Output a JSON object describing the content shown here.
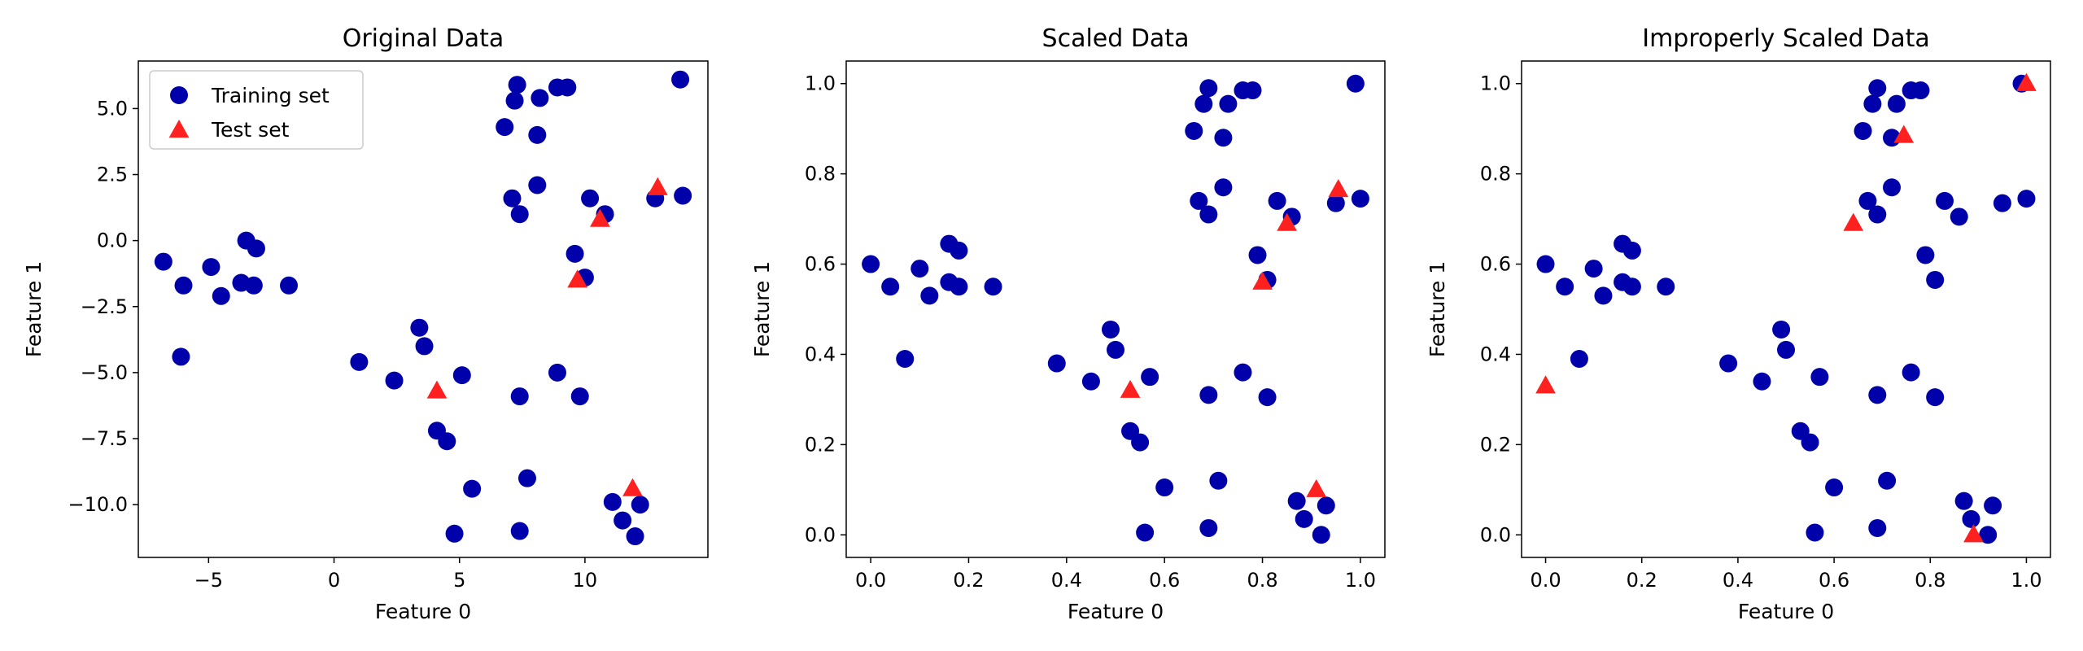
{
  "chart_data": [
    {
      "type": "scatter",
      "title": "Original Data",
      "xlabel": "Feature 0",
      "ylabel": "Feature 1",
      "xlim": [
        -7.8,
        14.9
      ],
      "ylim": [
        -12.0,
        6.8
      ],
      "xticks": [
        -5,
        0,
        5,
        10
      ],
      "xtick_labels": [
        "−5",
        "0",
        "5",
        "10"
      ],
      "yticks": [
        -10.0,
        -7.5,
        -5.0,
        -2.5,
        0.0,
        2.5,
        5.0
      ],
      "ytick_labels": [
        "−10.0",
        "−7.5",
        "−5.0",
        "−2.5",
        "0.0",
        "2.5",
        "5.0"
      ],
      "legend": {
        "position": "upper-left",
        "entries": [
          {
            "label": "Training set",
            "marker": "circle",
            "color": "#0000aa"
          },
          {
            "label": "Test set",
            "marker": "triangle",
            "color": "#ff2020"
          }
        ]
      },
      "series": [
        {
          "name": "Training set",
          "marker": "circle",
          "color": "#0000aa",
          "points": [
            [
              -6.8,
              -0.8
            ],
            [
              -6.0,
              -1.7
            ],
            [
              -6.1,
              -4.4
            ],
            [
              -4.9,
              -1.0
            ],
            [
              -4.5,
              -2.1
            ],
            [
              -3.5,
              0.0
            ],
            [
              -3.1,
              -0.3
            ],
            [
              -3.7,
              -1.6
            ],
            [
              -3.2,
              -1.7
            ],
            [
              -1.8,
              -1.7
            ],
            [
              1.0,
              -4.6
            ],
            [
              2.4,
              -5.3
            ],
            [
              3.4,
              -3.3
            ],
            [
              3.6,
              -4.0
            ],
            [
              5.1,
              -5.1
            ],
            [
              4.1,
              -7.2
            ],
            [
              4.5,
              -7.6
            ],
            [
              5.5,
              -9.4
            ],
            [
              4.8,
              -11.1
            ],
            [
              7.4,
              -5.9
            ],
            [
              7.7,
              -9.0
            ],
            [
              7.4,
              -11.0
            ],
            [
              8.9,
              -5.0
            ],
            [
              9.8,
              -5.9
            ],
            [
              11.1,
              -9.9
            ],
            [
              11.5,
              -10.6
            ],
            [
              12.2,
              -10.0
            ],
            [
              12.0,
              -11.2
            ],
            [
              7.3,
              5.9
            ],
            [
              7.2,
              5.3
            ],
            [
              8.9,
              5.8
            ],
            [
              9.3,
              5.8
            ],
            [
              8.2,
              5.4
            ],
            [
              6.8,
              4.3
            ],
            [
              8.1,
              4.0
            ],
            [
              7.1,
              1.6
            ],
            [
              7.4,
              1.0
            ],
            [
              8.1,
              2.1
            ],
            [
              10.2,
              1.6
            ],
            [
              10.8,
              1.0
            ],
            [
              9.6,
              -0.5
            ],
            [
              10.0,
              -1.4
            ],
            [
              12.8,
              1.6
            ],
            [
              13.8,
              6.1
            ],
            [
              13.9,
              1.7
            ]
          ]
        },
        {
          "name": "Test set",
          "marker": "triangle",
          "color": "#ff2020",
          "points": [
            [
              4.1,
              -5.7
            ],
            [
              9.7,
              -1.5
            ],
            [
              10.6,
              0.8
            ],
            [
              12.9,
              2.0
            ],
            [
              11.9,
              -9.4
            ]
          ]
        }
      ]
    },
    {
      "type": "scatter",
      "title": "Scaled Data",
      "xlabel": "Feature 0",
      "ylabel": "Feature 1",
      "xlim": [
        -0.05,
        1.05
      ],
      "ylim": [
        -0.05,
        1.05
      ],
      "xticks": [
        0.0,
        0.2,
        0.4,
        0.6,
        0.8,
        1.0
      ],
      "xtick_labels": [
        "0.0",
        "0.2",
        "0.4",
        "0.6",
        "0.8",
        "1.0"
      ],
      "yticks": [
        0.0,
        0.2,
        0.4,
        0.6,
        0.8,
        1.0
      ],
      "ytick_labels": [
        "0.0",
        "0.2",
        "0.4",
        "0.6",
        "0.8",
        "1.0"
      ],
      "series": [
        {
          "name": "Training set",
          "marker": "circle",
          "color": "#0000aa",
          "points": [
            [
              0.0,
              0.6
            ],
            [
              0.04,
              0.55
            ],
            [
              0.07,
              0.39
            ],
            [
              0.1,
              0.59
            ],
            [
              0.12,
              0.53
            ],
            [
              0.16,
              0.56
            ],
            [
              0.16,
              0.645
            ],
            [
              0.18,
              0.63
            ],
            [
              0.18,
              0.55
            ],
            [
              0.25,
              0.55
            ],
            [
              0.38,
              0.38
            ],
            [
              0.45,
              0.34
            ],
            [
              0.49,
              0.455
            ],
            [
              0.5,
              0.41
            ],
            [
              0.57,
              0.35
            ],
            [
              0.53,
              0.23
            ],
            [
              0.55,
              0.205
            ],
            [
              0.6,
              0.105
            ],
            [
              0.56,
              0.005
            ],
            [
              0.69,
              0.31
            ],
            [
              0.71,
              0.12
            ],
            [
              0.69,
              0.015
            ],
            [
              0.76,
              0.36
            ],
            [
              0.81,
              0.305
            ],
            [
              0.87,
              0.075
            ],
            [
              0.885,
              0.035
            ],
            [
              0.93,
              0.065
            ],
            [
              0.92,
              0.0
            ],
            [
              0.69,
              0.99
            ],
            [
              0.68,
              0.955
            ],
            [
              0.76,
              0.985
            ],
            [
              0.78,
              0.985
            ],
            [
              0.73,
              0.955
            ],
            [
              0.66,
              0.895
            ],
            [
              0.72,
              0.88
            ],
            [
              0.67,
              0.74
            ],
            [
              0.69,
              0.71
            ],
            [
              0.72,
              0.77
            ],
            [
              0.83,
              0.74
            ],
            [
              0.86,
              0.705
            ],
            [
              0.79,
              0.62
            ],
            [
              0.81,
              0.565
            ],
            [
              0.95,
              0.735
            ],
            [
              0.99,
              1.0
            ],
            [
              1.0,
              0.745
            ]
          ]
        },
        {
          "name": "Test set",
          "marker": "triangle",
          "color": "#ff2020",
          "points": [
            [
              0.53,
              0.32
            ],
            [
              0.8,
              0.56
            ],
            [
              0.85,
              0.69
            ],
            [
              0.955,
              0.765
            ],
            [
              0.91,
              0.1
            ]
          ]
        }
      ]
    },
    {
      "type": "scatter",
      "title": "Improperly Scaled Data",
      "xlabel": "Feature 0",
      "ylabel": "Feature 1",
      "xlim": [
        -0.05,
        1.05
      ],
      "ylim": [
        -0.05,
        1.05
      ],
      "xticks": [
        0.0,
        0.2,
        0.4,
        0.6,
        0.8,
        1.0
      ],
      "xtick_labels": [
        "0.0",
        "0.2",
        "0.4",
        "0.6",
        "0.8",
        "1.0"
      ],
      "yticks": [
        0.0,
        0.2,
        0.4,
        0.6,
        0.8,
        1.0
      ],
      "ytick_labels": [
        "0.0",
        "0.2",
        "0.4",
        "0.6",
        "0.8",
        "1.0"
      ],
      "series": [
        {
          "name": "Training set",
          "marker": "circle",
          "color": "#0000aa",
          "points": [
            [
              0.0,
              0.6
            ],
            [
              0.04,
              0.55
            ],
            [
              0.07,
              0.39
            ],
            [
              0.1,
              0.59
            ],
            [
              0.12,
              0.53
            ],
            [
              0.16,
              0.56
            ],
            [
              0.16,
              0.645
            ],
            [
              0.18,
              0.63
            ],
            [
              0.18,
              0.55
            ],
            [
              0.25,
              0.55
            ],
            [
              0.38,
              0.38
            ],
            [
              0.45,
              0.34
            ],
            [
              0.49,
              0.455
            ],
            [
              0.5,
              0.41
            ],
            [
              0.57,
              0.35
            ],
            [
              0.53,
              0.23
            ],
            [
              0.55,
              0.205
            ],
            [
              0.6,
              0.105
            ],
            [
              0.56,
              0.005
            ],
            [
              0.69,
              0.31
            ],
            [
              0.71,
              0.12
            ],
            [
              0.69,
              0.015
            ],
            [
              0.76,
              0.36
            ],
            [
              0.81,
              0.305
            ],
            [
              0.87,
              0.075
            ],
            [
              0.885,
              0.035
            ],
            [
              0.93,
              0.065
            ],
            [
              0.92,
              0.0
            ],
            [
              0.69,
              0.99
            ],
            [
              0.68,
              0.955
            ],
            [
              0.76,
              0.985
            ],
            [
              0.78,
              0.985
            ],
            [
              0.73,
              0.955
            ],
            [
              0.66,
              0.895
            ],
            [
              0.72,
              0.88
            ],
            [
              0.67,
              0.74
            ],
            [
              0.69,
              0.71
            ],
            [
              0.72,
              0.77
            ],
            [
              0.83,
              0.74
            ],
            [
              0.86,
              0.705
            ],
            [
              0.79,
              0.62
            ],
            [
              0.81,
              0.565
            ],
            [
              0.95,
              0.735
            ],
            [
              0.99,
              1.0
            ],
            [
              1.0,
              0.745
            ]
          ]
        },
        {
          "name": "Test set",
          "marker": "triangle",
          "color": "#ff2020",
          "points": [
            [
              0.0,
              0.33
            ],
            [
              0.64,
              0.69
            ],
            [
              0.745,
              0.885
            ],
            [
              1.0,
              1.0
            ],
            [
              0.89,
              0.0
            ]
          ]
        }
      ]
    }
  ]
}
